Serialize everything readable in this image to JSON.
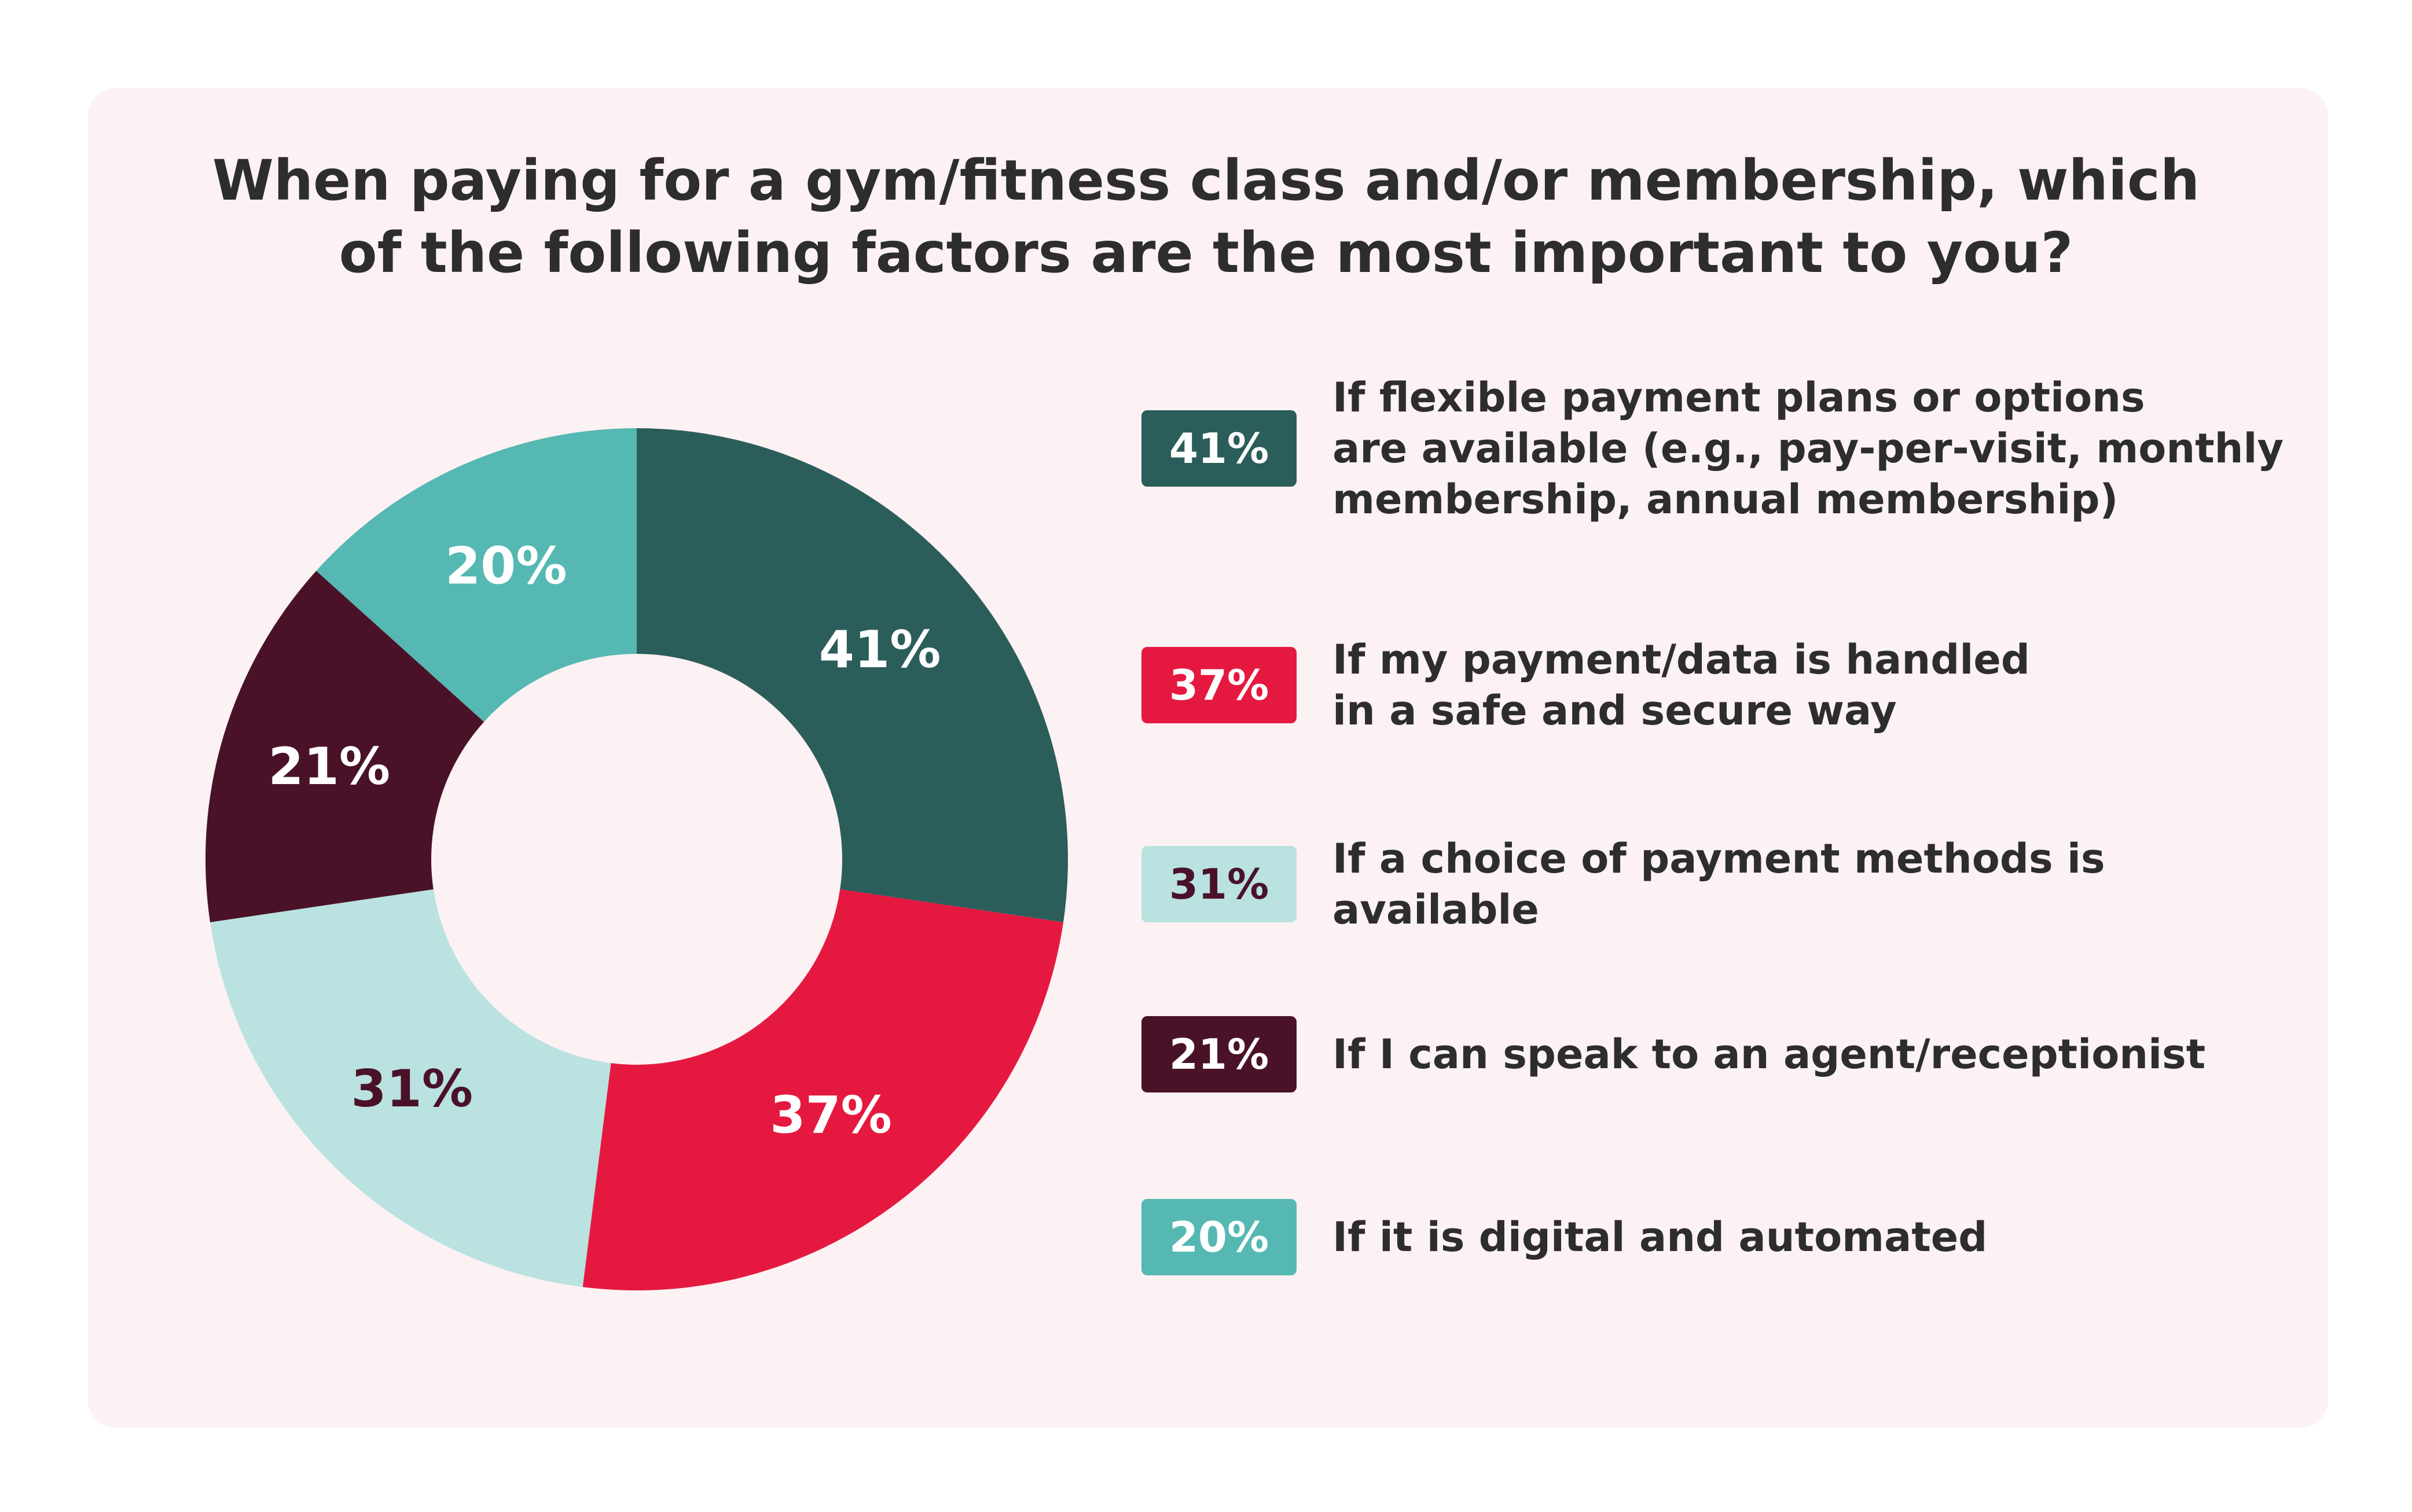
{
  "chart_data": {
    "type": "pie",
    "donut": true,
    "title": "When paying for a gym/fitness class and/or membership, which\nof the following factors are the most important to you?",
    "series": [
      {
        "label": "If flexible payment plans or options\nare available (e.g., pay-per-visit, monthly\nmembership, annual membership)",
        "value": 41,
        "display": "41%",
        "color": "#2b5d5b",
        "text_color": "#ffffff"
      },
      {
        "label": "If my payment/data is handled\nin a safe and secure way",
        "value": 37,
        "display": "37%",
        "color": "#e51940",
        "text_color": "#ffffff"
      },
      {
        "label": "If a choice of payment methods is available",
        "value": 31,
        "display": "31%",
        "color": "#b9e2e0",
        "text_color": "#4a1228"
      },
      {
        "label": "If I can speak to an agent/receptionist",
        "value": 21,
        "display": "21%",
        "color": "#4a1228",
        "text_color": "#ffffff"
      },
      {
        "label": "If it is digital and automated",
        "value": 20,
        "display": "20%",
        "color": "#56b8b3",
        "text_color": "#ffffff"
      }
    ],
    "legend_position": "right"
  }
}
